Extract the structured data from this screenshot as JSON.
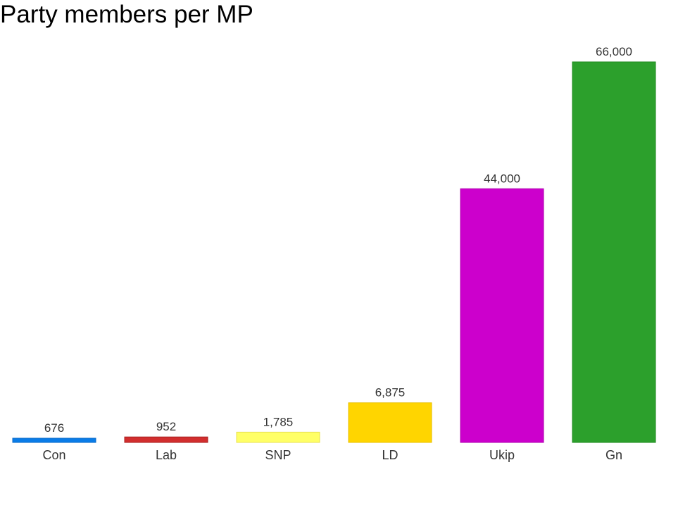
{
  "chart_data": {
    "type": "bar",
    "title": "Party members per MP",
    "xlabel": "",
    "ylabel": "",
    "categories": [
      "Con",
      "Lab",
      "SNP",
      "LD",
      "Ukip",
      "Gn"
    ],
    "values": [
      676,
      952,
      1785,
      6875,
      44000,
      66000
    ],
    "value_labels": [
      "676",
      "952",
      "1,785",
      "6,875",
      "44,000",
      "66,000"
    ],
    "colors": [
      "#0A7CE8",
      "#D22E2E",
      "#FFFF66",
      "#FFD500",
      "#CC00CC",
      "#2CA02C"
    ],
    "border_colors": [
      "#0A6AC8",
      "#A81E1E",
      "#E8E050",
      "#E8C000",
      "#B000B0",
      "#1E8A1E"
    ],
    "ylim": [
      0,
      66000
    ],
    "grid": false,
    "legend": "none"
  }
}
